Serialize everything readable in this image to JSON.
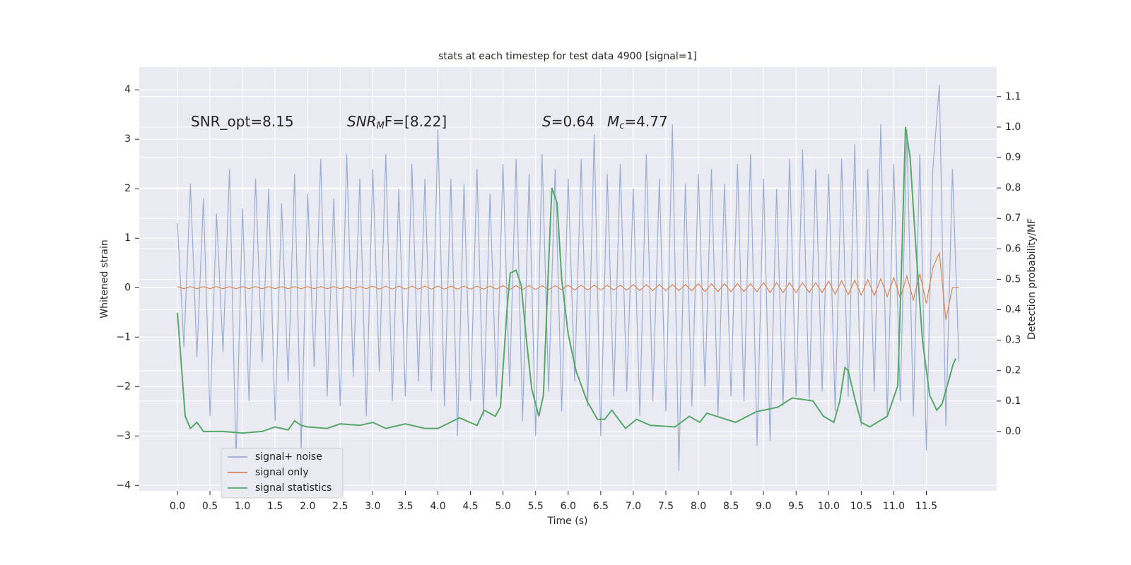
{
  "chart_data": {
    "type": "line",
    "title": "stats at each timestep for test data 4900 [signal=1]",
    "xlabel": "Time (s)",
    "ylabel": "Whitened strain",
    "y2label": "Detection probability/MF",
    "annotations": [
      [
        "SNR_opt=8.15"
      ],
      [
        "SNR",
        "M",
        "F=[8.22]"
      ],
      [
        "S",
        "=0.64"
      ],
      [
        "M",
        "c",
        "=4.77"
      ]
    ],
    "x": [
      0,
      0.1,
      0.2,
      0.3,
      0.4,
      0.5,
      0.6,
      0.7,
      0.8,
      0.9,
      1,
      1.1,
      1.2,
      1.3,
      1.4,
      1.5,
      1.6,
      1.7,
      1.8,
      1.9,
      2,
      2.1,
      2.2,
      2.3,
      2.4,
      2.5,
      2.6,
      2.7,
      2.8,
      2.9,
      3,
      3.1,
      3.2,
      3.3,
      3.4,
      3.5,
      3.6,
      3.7,
      3.8,
      3.9,
      4,
      4.1,
      4.2,
      4.3,
      4.4,
      4.5,
      4.6,
      4.7,
      4.8,
      4.9,
      5,
      5.1,
      5.2,
      5.3,
      5.4,
      5.5,
      5.6,
      5.7,
      5.8,
      5.9,
      6,
      6.1,
      6.2,
      6.3,
      6.4,
      6.5,
      6.6,
      6.7,
      6.8,
      6.9,
      7,
      7.1,
      7.2,
      7.3,
      7.4,
      7.5,
      7.6,
      7.7,
      7.8,
      7.9,
      8,
      8.1,
      8.2,
      8.3,
      8.4,
      8.5,
      8.6,
      8.7,
      8.8,
      8.9,
      9,
      9.1,
      9.2,
      9.3,
      9.4,
      9.5,
      9.6,
      9.7,
      9.8,
      9.9,
      10,
      10.1,
      10.2,
      10.3,
      10.4,
      10.5,
      10.6,
      10.7,
      10.8,
      10.9,
      11,
      11.1,
      11.2,
      11.3,
      11.4,
      11.5,
      11.6,
      11.7,
      11.8,
      11.9,
      12
    ],
    "series": [
      {
        "name": "signal+ noise",
        "color": "#9aadd3",
        "values": [
          1.3,
          -1.2,
          2.1,
          -1.4,
          1.8,
          -2.6,
          1.5,
          -1.3,
          2.4,
          -3.5,
          1.6,
          -2.3,
          2.2,
          -1.5,
          2.0,
          -2.7,
          1.7,
          -1.9,
          2.3,
          -3.3,
          1.9,
          -1.6,
          2.6,
          -2.2,
          1.8,
          -2.4,
          2.7,
          -1.8,
          2.2,
          -2.6,
          2.4,
          -1.7,
          2.7,
          -2.3,
          2.0,
          -2.2,
          2.5,
          -1.9,
          2.2,
          -2.1,
          3.2,
          -2.4,
          2.2,
          -3.0,
          2.1,
          -2.3,
          2.4,
          -2.6,
          1.9,
          -2.2,
          2.5,
          -2.0,
          2.6,
          -2.7,
          2.3,
          -3.0,
          2.7,
          -2.1,
          2.4,
          -2.5,
          2.2,
          -1.9,
          2.6,
          -2.4,
          3.1,
          -3.0,
          2.3,
          -2.2,
          2.5,
          -2.1,
          2.0,
          -2.6,
          2.7,
          -2.3,
          2.2,
          -2.5,
          3.3,
          -3.7,
          2.1,
          -2.4,
          2.3,
          -2.0,
          2.4,
          -2.6,
          2.1,
          -2.2,
          2.5,
          -2.3,
          2.7,
          -3.2,
          2.2,
          -3.1,
          2.0,
          -2.4,
          2.6,
          -2.2,
          2.8,
          -2.3,
          2.4,
          -2.1,
          2.3,
          -2.5,
          2.6,
          -2.2,
          2.9,
          -2.8,
          2.4,
          -2.1,
          3.3,
          -2.6,
          2.5,
          -2.3,
          3.2,
          -2.6,
          2.7,
          -3.3,
          2.4,
          4.1,
          -2.8,
          2.4,
          -1.5
        ]
      },
      {
        "name": "signal only",
        "color": "#dd8452",
        "values": [
          0.02,
          -0.02,
          0.02,
          -0.02,
          0.02,
          -0.02,
          0.02,
          -0.02,
          0.02,
          -0.02,
          0.02,
          -0.02,
          0.02,
          -0.02,
          0.02,
          -0.02,
          0.02,
          -0.02,
          0.02,
          -0.02,
          0.02,
          -0.02,
          0.02,
          -0.02,
          0.02,
          -0.02,
          0.02,
          -0.02,
          0.02,
          -0.02,
          0.03,
          -0.03,
          0.03,
          -0.03,
          0.03,
          -0.03,
          0.03,
          -0.03,
          0.03,
          -0.03,
          0.03,
          -0.03,
          0.03,
          -0.03,
          0.03,
          -0.03,
          0.03,
          -0.03,
          0.03,
          -0.03,
          0.04,
          -0.04,
          0.04,
          -0.04,
          0.04,
          -0.04,
          0.04,
          -0.04,
          0.04,
          -0.04,
          0.05,
          -0.05,
          0.05,
          -0.05,
          0.05,
          -0.05,
          0.05,
          -0.05,
          0.05,
          -0.05,
          0.06,
          -0.06,
          0.06,
          -0.06,
          0.06,
          -0.06,
          0.06,
          -0.06,
          0.06,
          -0.06,
          0.08,
          -0.08,
          0.08,
          -0.08,
          0.08,
          -0.08,
          0.08,
          -0.08,
          0.08,
          -0.08,
          0.1,
          -0.1,
          0.1,
          -0.1,
          0.1,
          -0.1,
          0.1,
          -0.1,
          0.1,
          -0.1,
          0.13,
          -0.13,
          0.14,
          -0.14,
          0.15,
          -0.15,
          0.16,
          -0.16,
          0.18,
          -0.18,
          0.2,
          -0.21,
          0.23,
          -0.25,
          0.28,
          -0.32,
          0.4,
          0.7,
          -0.65,
          0,
          0
        ]
      },
      {
        "name": "signal statistics",
        "color": "#55a868",
        "axis": "y2",
        "x": [
          0,
          0.12,
          0.2,
          0.3,
          0.4,
          0.5,
          0.7,
          1.0,
          1.3,
          1.5,
          1.6,
          1.7,
          1.8,
          1.9,
          2.0,
          2.3,
          2.5,
          2.8,
          3.0,
          3.2,
          3.5,
          3.8,
          4.0,
          4.33,
          4.6,
          4.71,
          4.88,
          4.96,
          5.06,
          5.11,
          5.2,
          5.28,
          5.36,
          5.44,
          5.55,
          5.62,
          5.69,
          5.75,
          5.83,
          5.9,
          6.0,
          6.12,
          6.29,
          6.45,
          6.56,
          6.67,
          6.88,
          7.05,
          7.26,
          7.64,
          7.86,
          8.02,
          8.13,
          8.57,
          8.89,
          9.22,
          9.44,
          9.76,
          9.92,
          10.08,
          10.17,
          10.25,
          10.3,
          10.41,
          10.5,
          10.63,
          10.9,
          11.06,
          11.12,
          11.18,
          11.25,
          11.34,
          11.44,
          11.55,
          11.66,
          11.74,
          11.82,
          11.91,
          11.95
        ],
        "values": [
          0.39,
          0.05,
          0.01,
          0.03,
          0.0,
          0.0,
          0.0,
          -0.005,
          0.0,
          0.015,
          0.01,
          0.005,
          0.035,
          0.02,
          0.015,
          0.01,
          0.025,
          0.02,
          0.03,
          0.01,
          0.025,
          0.01,
          0.01,
          0.045,
          0.02,
          0.07,
          0.05,
          0.08,
          0.4,
          0.52,
          0.53,
          0.48,
          0.3,
          0.14,
          0.05,
          0.12,
          0.5,
          0.8,
          0.75,
          0.5,
          0.32,
          0.2,
          0.1,
          0.04,
          0.04,
          0.07,
          0.01,
          0.04,
          0.02,
          0.015,
          0.05,
          0.03,
          0.06,
          0.03,
          0.065,
          0.08,
          0.11,
          0.1,
          0.05,
          0.03,
          0.1,
          0.21,
          0.2,
          0.1,
          0.03,
          0.015,
          0.05,
          0.15,
          0.55,
          1.0,
          0.9,
          0.6,
          0.3,
          0.12,
          0.07,
          0.09,
          0.15,
          0.22,
          0.24
        ]
      }
    ],
    "xlim": [
      -0.586,
      12.58
    ],
    "xticks": [
      {
        "value": 0,
        "label": "0.0"
      },
      0.5,
      {
        "value": 1,
        "label": "1.0"
      },
      1.5,
      {
        "value": 2,
        "label": "2.0"
      },
      2.5,
      {
        "value": 3,
        "label": "3.0"
      },
      3.5,
      {
        "value": 4,
        "label": "4.0"
      },
      4.5,
      {
        "value": 5,
        "label": "5.0"
      },
      5.5,
      {
        "value": 6,
        "label": "6.0"
      },
      6.5,
      {
        "value": 7,
        "label": "7.0"
      },
      7.5,
      {
        "value": 8,
        "label": "8.0"
      },
      8.5,
      {
        "value": 9,
        "label": "9.0"
      },
      9.5,
      {
        "value": 10,
        "label": "10.0"
      },
      10.5,
      {
        "value": 11,
        "label": "11.0"
      },
      11.5
    ],
    "ylim": [
      -4.11,
      4.46
    ],
    "yticks": [
      {
        "value": -4,
        "label": "−4"
      },
      {
        "value": -3,
        "label": "−3"
      },
      {
        "value": -2,
        "label": "−2"
      },
      {
        "value": -1,
        "label": "−1"
      },
      0,
      1,
      2,
      3,
      4
    ],
    "y2lim": [
      -0.195,
      1.197
    ],
    "y2ticks": [
      {
        "value": 0,
        "label": "0.0"
      },
      0.1,
      0.2,
      0.3,
      0.4,
      0.5,
      0.6,
      0.7,
      0.8,
      0.9,
      {
        "value": 1,
        "label": "1.0"
      },
      1.1
    ],
    "grid": true,
    "legend": "lower left"
  }
}
